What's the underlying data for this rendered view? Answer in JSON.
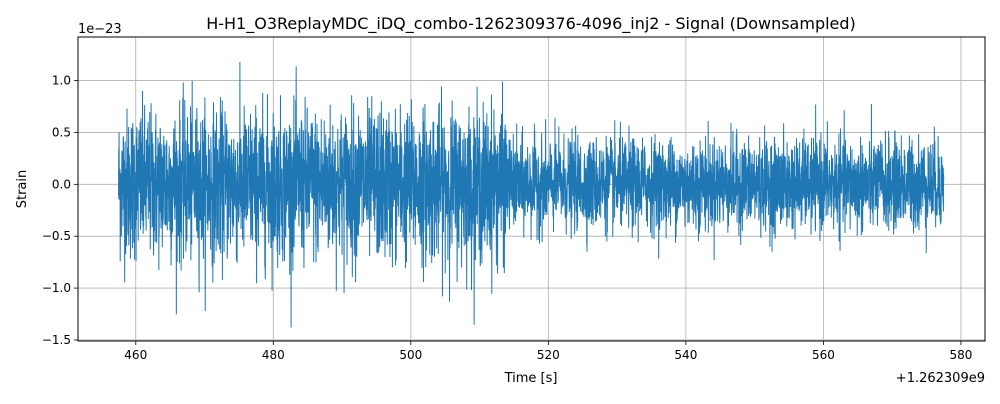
{
  "chart_data": {
    "type": "line",
    "title": "H-H1_O3ReplayMDC_iDQ_combo-1262309376-4096_inj2 - Signal (Downsampled)",
    "xlabel": "Time [s]",
    "ylabel": "Strain",
    "x_offset_label": "+1.262309e9",
    "y_scale_label": "1e−23",
    "xlim": [
      451.6,
      583.5
    ],
    "ylim": [
      -1.51,
      1.42
    ],
    "xticks": [
      460,
      480,
      500,
      520,
      540,
      560,
      580
    ],
    "xtick_labels": [
      "460",
      "480",
      "500",
      "520",
      "540",
      "560",
      "580"
    ],
    "yticks": [
      -1.5,
      -1.0,
      -0.5,
      0.0,
      0.5,
      1.0
    ],
    "ytick_labels": [
      "−1.5",
      "−1.0",
      "−0.5",
      "0.0",
      "0.5",
      "1.0"
    ],
    "grid": true,
    "series_color": "#1f77b4",
    "series": [
      {
        "x_range": [
          457.5,
          577.5
        ],
        "segments": [
          {
            "x_range": [
              457.5,
              514.0
            ],
            "typical_peak": 1.0,
            "max": 1.2,
            "min": -1.38
          },
          {
            "x_range": [
              514.0,
              577.5
            ],
            "typical_peak": 0.6,
            "max": 0.87,
            "min": -1.03
          }
        ]
      }
    ]
  }
}
